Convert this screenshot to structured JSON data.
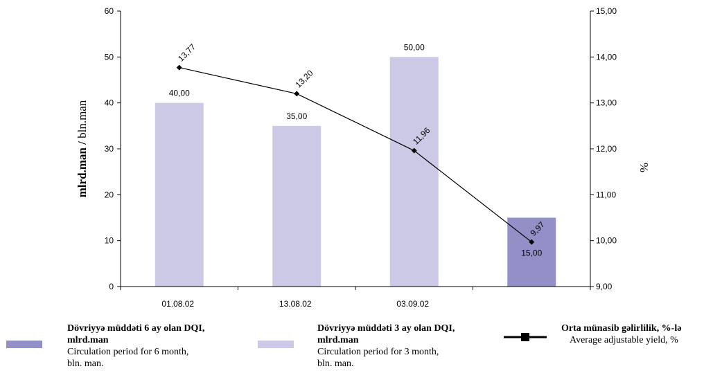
{
  "chart_data": {
    "type": "bar",
    "categories": [
      "01.08.02",
      "13.08.02",
      "03.09.02",
      ""
    ],
    "y_left": {
      "label_bold": "mlrd.man",
      "label_sep": " / ",
      "label_regular": "bln.man",
      "ylim": [
        0,
        60
      ],
      "ticks": [
        "0",
        "10",
        "20",
        "30",
        "40",
        "50",
        "60"
      ]
    },
    "y_right": {
      "label": "%",
      "ylim": [
        9,
        15
      ],
      "ticks": [
        "9,00",
        "10,00",
        "11,00",
        "12,00",
        "13,00",
        "14,00",
        "15,00"
      ]
    },
    "series": [
      {
        "name_az": "Dövriyyə müddəti 3 ay olan DQI,\nmlrd.man",
        "name_en": "Circulation period for 3 month,\nbln. man.",
        "kind": "bar",
        "color": "#cbc9e6",
        "values": [
          40,
          35,
          50,
          null
        ],
        "labels": [
          "40,00",
          "35,00",
          "50,00",
          ""
        ]
      },
      {
        "name_az": "Dövriyyə müddəti 6 ay olan DQI,\nmlrd.man",
        "name_en": "Circulation period for 6 month,\nbln. man.",
        "kind": "bar",
        "color": "#9290c6",
        "values": [
          null,
          null,
          null,
          15
        ],
        "labels": [
          "",
          "",
          "",
          "15,00"
        ]
      },
      {
        "name_az": "Orta münasib gəlirlilik, %-lə",
        "name_en": "Average adjustable yield, %",
        "kind": "line",
        "axis": "right",
        "color": "#000000",
        "values": [
          13.77,
          13.2,
          11.96,
          9.97
        ],
        "labels": [
          "13,77",
          "13,20",
          "11,96",
          "9,97"
        ]
      }
    ],
    "grid": false,
    "legend_position": "bottom"
  }
}
